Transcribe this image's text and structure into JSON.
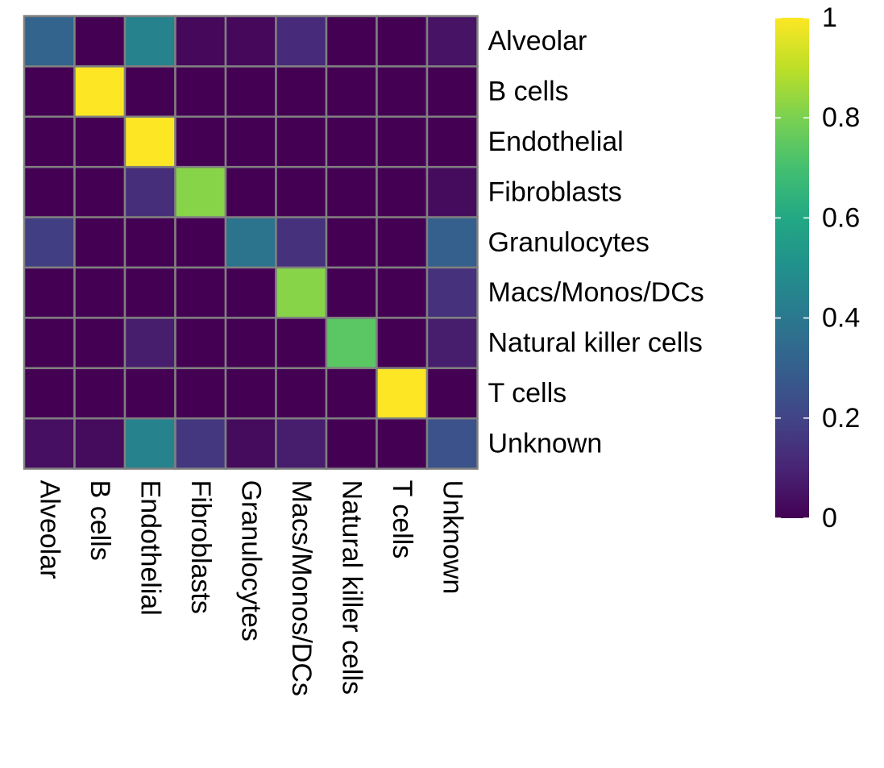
{
  "chart_data": {
    "type": "heatmap",
    "title": "",
    "xlabel": "",
    "ylabel": "",
    "colormap": "viridis",
    "row_labels": [
      "Alveolar",
      "B cells",
      "Endothelial",
      "Fibroblasts",
      "Granulocytes",
      "Macs/Monos/DCs",
      "Natural killer cells",
      "T cells",
      "Unknown"
    ],
    "col_labels": [
      "Alveolar",
      "B cells",
      "Endothelial",
      "Fibroblasts",
      "Granulocytes",
      "Macs/Monos/DCs",
      "Natural killer cells",
      "T cells",
      "Unknown"
    ],
    "values": [
      [
        0.32,
        0.0,
        0.44,
        0.02,
        0.02,
        0.12,
        0.0,
        0.0,
        0.05
      ],
      [
        0.0,
        1.0,
        0.0,
        0.0,
        0.0,
        0.0,
        0.0,
        0.0,
        0.0
      ],
      [
        0.0,
        0.0,
        1.0,
        0.0,
        0.0,
        0.0,
        0.0,
        0.0,
        0.0
      ],
      [
        0.0,
        0.0,
        0.13,
        0.82,
        0.0,
        0.0,
        0.0,
        0.0,
        0.03
      ],
      [
        0.18,
        0.0,
        0.0,
        0.0,
        0.38,
        0.14,
        0.0,
        0.0,
        0.3
      ],
      [
        0.0,
        0.0,
        0.0,
        0.0,
        0.0,
        0.82,
        0.0,
        0.0,
        0.14
      ],
      [
        0.0,
        0.0,
        0.08,
        0.0,
        0.0,
        0.0,
        0.74,
        0.0,
        0.08
      ],
      [
        0.0,
        0.0,
        0.0,
        0.0,
        0.0,
        0.0,
        0.0,
        1.0,
        0.0
      ],
      [
        0.04,
        0.03,
        0.44,
        0.16,
        0.03,
        0.08,
        0.0,
        0.0,
        0.25
      ]
    ],
    "colorbar": {
      "min": 0,
      "max": 1,
      "ticks": [
        0,
        0.2,
        0.4,
        0.6,
        0.8,
        1
      ],
      "tick_labels": [
        "0",
        "0.2",
        "0.4",
        "0.6",
        "0.8",
        "1"
      ]
    },
    "cell_border_color": "#808080",
    "colors": {
      "low": "#440154",
      "mid": "#21908C",
      "high": "#FDE725"
    }
  }
}
